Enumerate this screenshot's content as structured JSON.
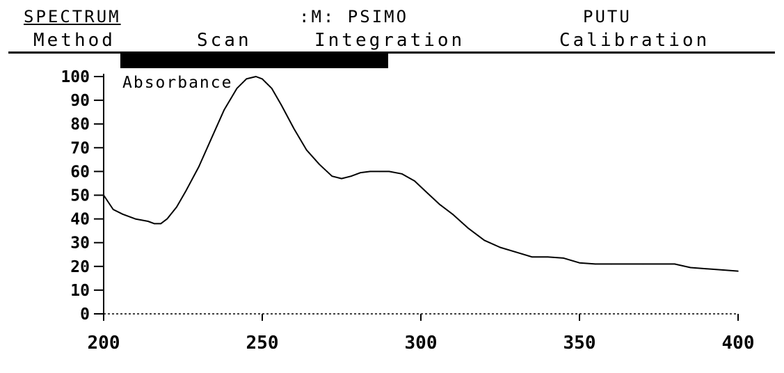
{
  "header": {
    "mode_title": "SPECTRUM",
    "method_label": ":M: PSIMO",
    "user_label": "PUTU"
  },
  "menu": {
    "items": [
      "Method",
      "Scan",
      "Integration",
      "Calibration"
    ]
  },
  "highlight_bar": "",
  "footnote": "",
  "colors": {
    "foreground": "#000000",
    "background": "#ffffff"
  },
  "chart_data": {
    "type": "line",
    "title": "",
    "xlabel": "",
    "ylabel": "",
    "xlim": [
      200,
      400
    ],
    "ylim": [
      0,
      100
    ],
    "x_ticks": [
      200,
      250,
      300,
      350,
      400
    ],
    "y_ticks": [
      0,
      10,
      20,
      30,
      40,
      50,
      60,
      70,
      80,
      90,
      100
    ],
    "grid": false,
    "series": [
      {
        "name": "Absorbance",
        "x": [
          200,
          203,
          206,
          210,
          214,
          216,
          218,
          220,
          223,
          226,
          230,
          234,
          238,
          242,
          245,
          248,
          250,
          253,
          256,
          260,
          264,
          268,
          272,
          275,
          278,
          281,
          284,
          287,
          290,
          294,
          298,
          302,
          306,
          310,
          315,
          320,
          325,
          330,
          335,
          340,
          345,
          350,
          355,
          360,
          370,
          380,
          385,
          390,
          395,
          400
        ],
        "y": [
          50,
          44,
          42,
          40,
          39,
          38,
          38,
          40,
          45,
          52,
          62,
          74,
          86,
          95,
          99,
          100,
          99,
          95,
          88,
          78,
          69,
          63,
          58,
          57,
          58,
          59.5,
          60,
          60,
          60,
          59,
          56,
          51,
          46,
          42,
          36,
          31,
          28,
          26,
          24,
          24,
          23.5,
          21.5,
          21,
          21,
          21,
          21,
          19.5,
          19,
          18.5,
          18
        ]
      }
    ]
  }
}
